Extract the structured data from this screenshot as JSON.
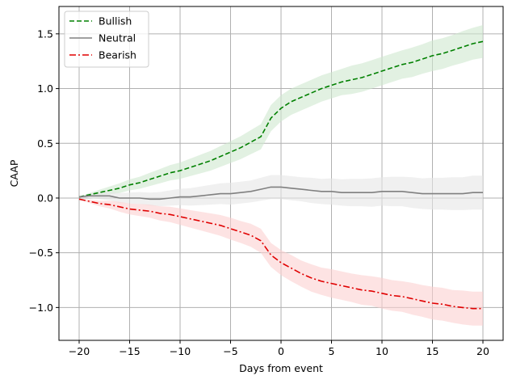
{
  "chart_data": {
    "type": "line",
    "title": "",
    "xlabel": "Days from event",
    "ylabel": "CAAP",
    "xlim": [
      -22,
      22
    ],
    "ylim": [
      -1.3,
      1.75
    ],
    "xticks": [
      -20,
      -15,
      -10,
      -5,
      0,
      5,
      10,
      15,
      20
    ],
    "xtick_labels": [
      "−20",
      "−15",
      "−10",
      "−5",
      "0",
      "5",
      "10",
      "15",
      "20"
    ],
    "yticks": [
      -1.0,
      -0.5,
      0.0,
      0.5,
      1.0,
      1.5
    ],
    "ytick_labels": [
      "−1.0",
      "−0.5",
      "0.0",
      "0.5",
      "1.0",
      "1.5"
    ],
    "grid": true,
    "legend_position": "top-left",
    "x": [
      -20,
      -19,
      -18,
      -17,
      -16,
      -15,
      -14,
      -13,
      -12,
      -11,
      -10,
      -9,
      -8,
      -7,
      -6,
      -5,
      -4,
      -3,
      -2,
      -1,
      0,
      1,
      2,
      3,
      4,
      5,
      6,
      7,
      8,
      9,
      10,
      11,
      12,
      13,
      14,
      15,
      16,
      17,
      18,
      19,
      20
    ],
    "series": [
      {
        "name": "Bullish",
        "color": "#008000",
        "band_color": "#cfe8cf",
        "style": "dashed",
        "values": [
          0.01,
          0.03,
          0.05,
          0.07,
          0.09,
          0.12,
          0.14,
          0.17,
          0.2,
          0.23,
          0.25,
          0.28,
          0.31,
          0.34,
          0.38,
          0.42,
          0.46,
          0.51,
          0.56,
          0.73,
          0.82,
          0.88,
          0.92,
          0.96,
          1.0,
          1.03,
          1.06,
          1.08,
          1.1,
          1.13,
          1.16,
          1.19,
          1.22,
          1.24,
          1.27,
          1.3,
          1.32,
          1.35,
          1.38,
          1.41,
          1.43
        ],
        "band": [
          0.0,
          0.015,
          0.025,
          0.035,
          0.045,
          0.05,
          0.055,
          0.06,
          0.065,
          0.07,
          0.075,
          0.08,
          0.085,
          0.09,
          0.095,
          0.1,
          0.105,
          0.11,
          0.115,
          0.12,
          0.12,
          0.12,
          0.12,
          0.12,
          0.12,
          0.12,
          0.12,
          0.13,
          0.13,
          0.13,
          0.13,
          0.13,
          0.13,
          0.135,
          0.135,
          0.14,
          0.14,
          0.14,
          0.145,
          0.145,
          0.15
        ]
      },
      {
        "name": "Neutral",
        "color": "#808080",
        "band_color": "#e6e6e6",
        "style": "solid",
        "values": [
          0.01,
          0.02,
          0.02,
          0.02,
          0.0,
          0.0,
          0.0,
          -0.01,
          -0.01,
          0.0,
          0.01,
          0.01,
          0.02,
          0.03,
          0.04,
          0.04,
          0.05,
          0.06,
          0.08,
          0.1,
          0.1,
          0.09,
          0.08,
          0.07,
          0.06,
          0.06,
          0.05,
          0.05,
          0.05,
          0.05,
          0.06,
          0.06,
          0.06,
          0.05,
          0.04,
          0.04,
          0.04,
          0.04,
          0.04,
          0.05,
          0.05
        ],
        "band": [
          0.0,
          0.02,
          0.03,
          0.04,
          0.045,
          0.05,
          0.055,
          0.06,
          0.065,
          0.07,
          0.075,
          0.08,
          0.085,
          0.09,
          0.095,
          0.1,
          0.1,
          0.1,
          0.105,
          0.11,
          0.11,
          0.11,
          0.11,
          0.115,
          0.115,
          0.12,
          0.12,
          0.125,
          0.125,
          0.13,
          0.13,
          0.135,
          0.135,
          0.14,
          0.14,
          0.145,
          0.145,
          0.15,
          0.15,
          0.155,
          0.155
        ]
      },
      {
        "name": "Bearish",
        "color": "#e00000",
        "band_color": "#fbd0d0",
        "style": "dashdot",
        "values": [
          -0.01,
          -0.03,
          -0.05,
          -0.06,
          -0.08,
          -0.1,
          -0.11,
          -0.12,
          -0.14,
          -0.15,
          -0.17,
          -0.19,
          -0.21,
          -0.23,
          -0.25,
          -0.28,
          -0.31,
          -0.34,
          -0.39,
          -0.52,
          -0.59,
          -0.64,
          -0.69,
          -0.73,
          -0.76,
          -0.78,
          -0.8,
          -0.82,
          -0.84,
          -0.85,
          -0.87,
          -0.89,
          -0.9,
          -0.92,
          -0.94,
          -0.96,
          -0.97,
          -0.99,
          -1.0,
          -1.01,
          -1.01
        ],
        "band": [
          0.0,
          0.015,
          0.025,
          0.035,
          0.045,
          0.05,
          0.055,
          0.06,
          0.065,
          0.07,
          0.075,
          0.08,
          0.085,
          0.09,
          0.095,
          0.1,
          0.1,
          0.105,
          0.11,
          0.11,
          0.115,
          0.12,
          0.12,
          0.125,
          0.125,
          0.13,
          0.13,
          0.13,
          0.135,
          0.135,
          0.14,
          0.14,
          0.14,
          0.145,
          0.145,
          0.15,
          0.15,
          0.15,
          0.155,
          0.155,
          0.155
        ]
      }
    ]
  }
}
